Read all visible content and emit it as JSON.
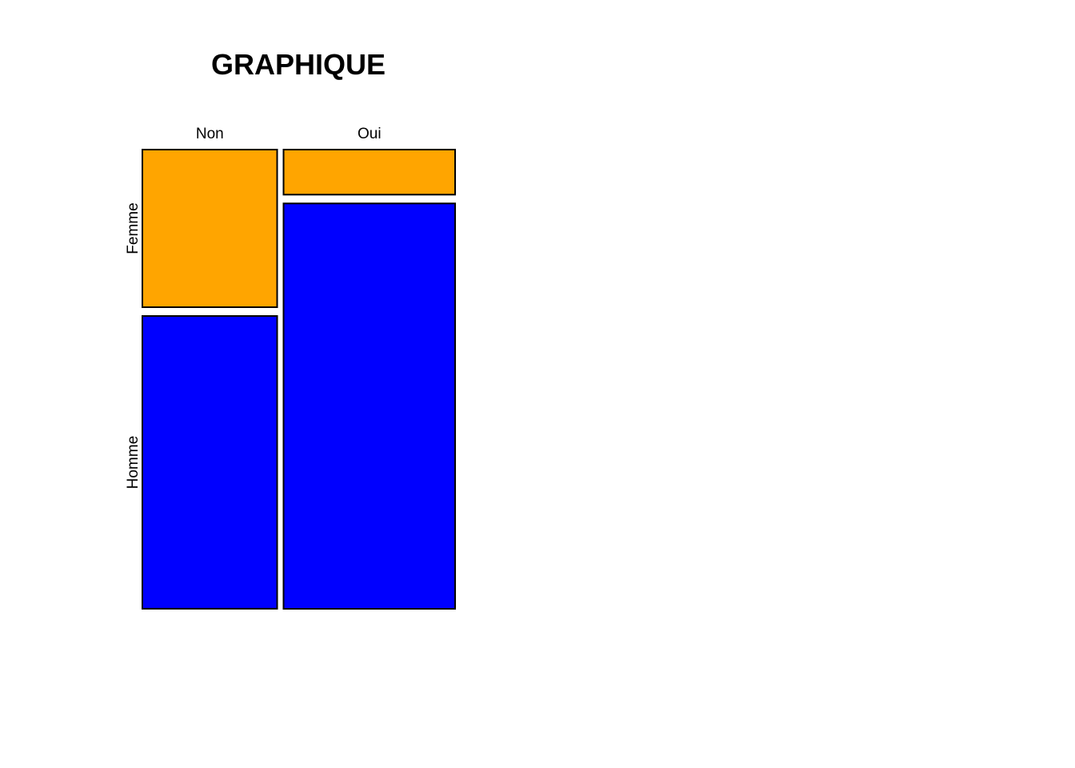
{
  "chart_data": {
    "type": "mosaic",
    "title": "GRAPHIQUE",
    "x_categories": [
      "Non",
      "Oui"
    ],
    "y_categories": [
      "Femme",
      "Homme"
    ],
    "x_proportions": [
      0.44,
      0.56
    ],
    "cells": [
      {
        "x": "Non",
        "y": "Femme",
        "proportion": 0.35,
        "color": "#FFA500"
      },
      {
        "x": "Non",
        "y": "Homme",
        "proportion": 0.65,
        "color": "#0000FF"
      },
      {
        "x": "Oui",
        "y": "Femme",
        "proportion": 0.1,
        "color": "#FFA500"
      },
      {
        "x": "Oui",
        "y": "Homme",
        "proportion": 0.9,
        "color": "#0000FF"
      }
    ],
    "colors": {
      "Femme": "#FFA500",
      "Homme": "#0000FF"
    }
  }
}
